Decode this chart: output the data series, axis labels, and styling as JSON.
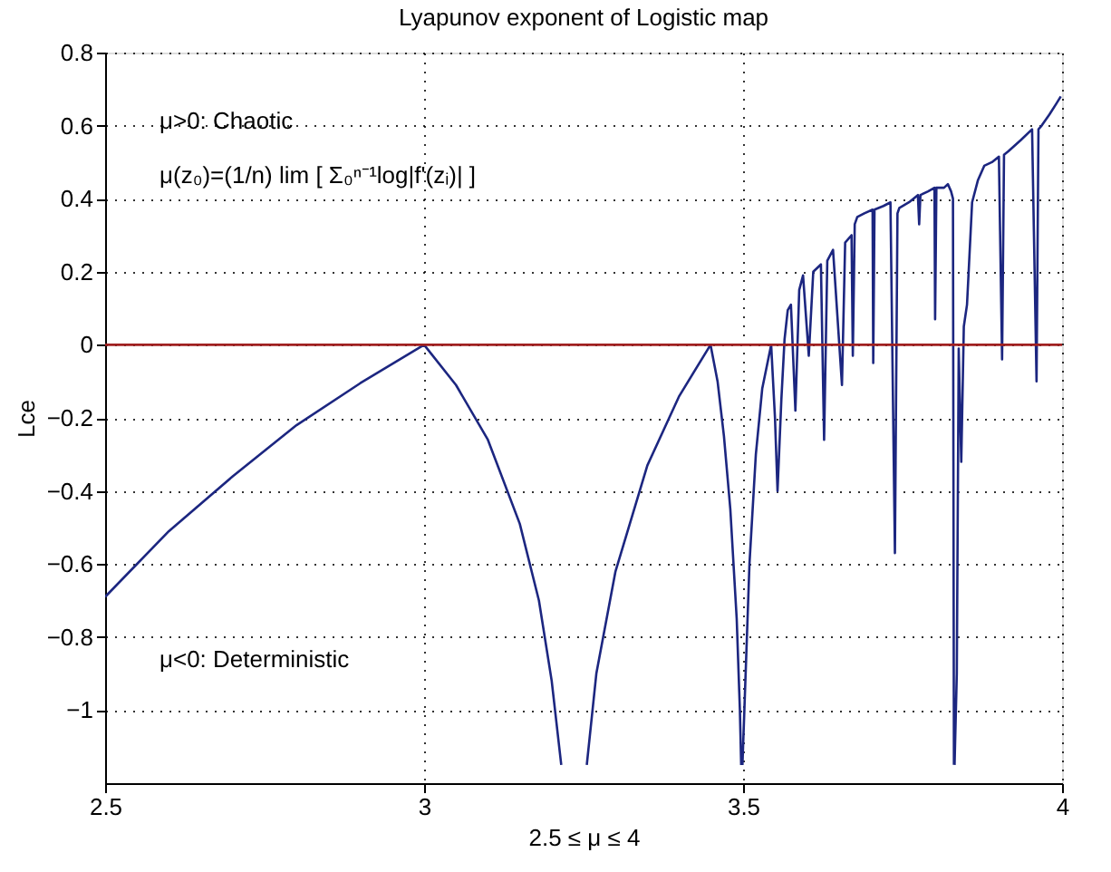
{
  "chart_data": {
    "type": "line",
    "title": "Lyapunov exponent of Logistic map",
    "xlabel": "2.5 ≤ μ ≤ 4",
    "ylabel": "Lce",
    "xlim": [
      2.5,
      4
    ],
    "ylim": [
      -1.2,
      0.8
    ],
    "xticks": [
      2.5,
      3,
      3.5,
      4
    ],
    "yticks": [
      {
        "value": -1,
        "label": "−1"
      },
      {
        "value": -0.8,
        "label": "−0.8"
      },
      {
        "value": -0.6,
        "label": "−0.6"
      },
      {
        "value": -0.4,
        "label": "−0.4"
      },
      {
        "value": -0.2,
        "label": "−0.2"
      },
      0,
      0.2,
      0.4,
      0.6,
      0.8
    ],
    "grid": true,
    "marker": "none",
    "line_style": "solid",
    "ref_lines": [
      {
        "axis": "y",
        "value": 0,
        "color": "#a02020"
      }
    ],
    "annotations": [
      "μ>0: Chaotic",
      "μ(z₀)=(1/n) lim [ Σ₀ⁿ⁻¹log|f'(zᵢ)| ]",
      "μ<0: Deterministic"
    ],
    "x": [
      2.5,
      2.6,
      2.7,
      2.8,
      2.9,
      3.0,
      3.05,
      3.1,
      3.15,
      3.18,
      3.2,
      3.215,
      3.236,
      3.255,
      3.27,
      3.3,
      3.35,
      3.4,
      3.449,
      3.46,
      3.47,
      3.48,
      3.49,
      3.495,
      3.497,
      3.498,
      3.499,
      3.502,
      3.51,
      3.52,
      3.53,
      3.544,
      3.55,
      3.554,
      3.56,
      3.565,
      3.57,
      3.575,
      3.582,
      3.588,
      3.594,
      3.603,
      3.61,
      3.622,
      3.627,
      3.632,
      3.641,
      3.655,
      3.66,
      3.67,
      3.672,
      3.675,
      3.679,
      3.69,
      3.703,
      3.704,
      3.706,
      3.72,
      3.731,
      3.738,
      3.742,
      3.745,
      3.76,
      3.774,
      3.776,
      3.778,
      3.79,
      3.8,
      3.801,
      3.803,
      3.815,
      3.821,
      3.826,
      3.829,
      3.8305,
      3.831,
      3.8315,
      3.835,
      3.838,
      3.842,
      3.846,
      3.851,
      3.859,
      3.868,
      3.878,
      3.89,
      3.901,
      3.906,
      3.909,
      3.916,
      3.935,
      3.953,
      3.96,
      3.963,
      3.968,
      3.98,
      3.991,
      3.998
    ],
    "series": [
      {
        "color": "#1c2680",
        "values": [
          -0.69,
          -0.51,
          -0.36,
          -0.22,
          -0.105,
          0,
          -0.11,
          -0.26,
          -0.49,
          -0.7,
          -0.92,
          -1.15,
          null,
          -1.15,
          -0.9,
          -0.62,
          -0.33,
          -0.14,
          0,
          -0.1,
          -0.25,
          -0.45,
          -0.75,
          -1.0,
          -1.15,
          null,
          -1.15,
          -1.0,
          -0.6,
          -0.3,
          -0.12,
          0,
          -0.2,
          -0.4,
          -0.15,
          0.015,
          0.095,
          0.11,
          -0.18,
          0.15,
          0.19,
          -0.03,
          0.2,
          0.22,
          -0.26,
          0.23,
          0.26,
          -0.11,
          0.28,
          0.3,
          -0.03,
          0.33,
          0.35,
          0.36,
          0.37,
          -0.05,
          0.37,
          0.38,
          0.39,
          -0.57,
          0.36,
          0.375,
          0.39,
          0.41,
          0.33,
          0.41,
          0.42,
          0.43,
          0.07,
          0.43,
          0.43,
          0.44,
          0.42,
          0.4,
          -1.15,
          null,
          -1.15,
          -0.9,
          -0.01,
          -0.32,
          0.05,
          0.11,
          0.39,
          0.45,
          0.49,
          0.5,
          0.515,
          -0.04,
          0.52,
          0.53,
          0.56,
          0.59,
          -0.1,
          0.59,
          0.6,
          0.63,
          0.66,
          0.68
        ]
      }
    ]
  }
}
